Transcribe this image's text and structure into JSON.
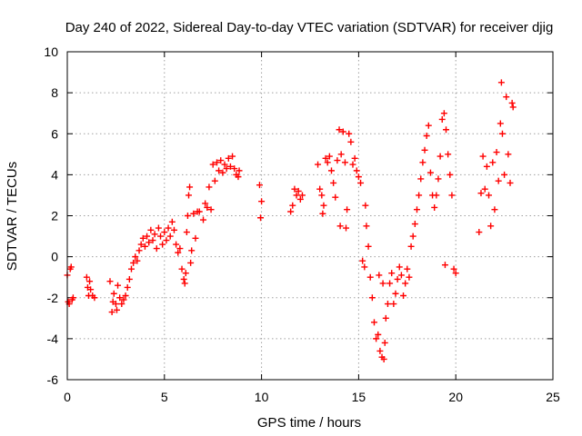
{
  "chart_data": {
    "type": "scatter",
    "title": "Day 240 of 2022, Sidereal Day-to-day VTEC variation (SDTVAR) for receiver djig",
    "xlabel": "GPS time / hours",
    "ylabel": "SDTVAR / TECUs",
    "xlim": [
      0,
      25
    ],
    "ylim": [
      -6,
      10
    ],
    "x_ticks": [
      0,
      5,
      10,
      15,
      20,
      25
    ],
    "y_ticks": [
      -6,
      -4,
      -2,
      0,
      2,
      4,
      6,
      8,
      10
    ],
    "x_tick_labels": [
      "0",
      "5",
      "10",
      "15",
      "20",
      "25"
    ],
    "y_tick_labels": [
      "-6",
      "-4",
      "-2",
      "0",
      "2",
      "4",
      "6",
      "8",
      "10"
    ],
    "grid": true,
    "marker": "+",
    "series": [
      {
        "color": "#ff0000",
        "points": [
          [
            0.0,
            -0.9
          ],
          [
            0.05,
            -2.2
          ],
          [
            0.1,
            -2.3
          ],
          [
            0.15,
            -0.6
          ],
          [
            0.2,
            -0.5
          ],
          [
            0.25,
            -2.1
          ],
          [
            0.3,
            -2.0
          ],
          [
            1.0,
            -1.0
          ],
          [
            1.05,
            -1.5
          ],
          [
            1.1,
            -1.9
          ],
          [
            1.15,
            -1.2
          ],
          [
            1.2,
            -1.6
          ],
          [
            1.3,
            -1.9
          ],
          [
            1.4,
            -2.0
          ],
          [
            2.2,
            -1.2
          ],
          [
            2.3,
            -2.7
          ],
          [
            2.35,
            -2.2
          ],
          [
            2.4,
            -1.8
          ],
          [
            2.5,
            -2.3
          ],
          [
            2.55,
            -2.6
          ],
          [
            2.6,
            -1.4
          ],
          [
            2.7,
            -2.0
          ],
          [
            2.8,
            -2.3
          ],
          [
            2.9,
            -2.1
          ],
          [
            3.0,
            -1.9
          ],
          [
            3.1,
            -1.5
          ],
          [
            3.2,
            -1.1
          ],
          [
            3.3,
            -0.6
          ],
          [
            3.4,
            -0.3
          ],
          [
            3.5,
            0.0
          ],
          [
            3.6,
            -0.2
          ],
          [
            3.7,
            0.3
          ],
          [
            3.8,
            0.6
          ],
          [
            3.9,
            0.9
          ],
          [
            4.0,
            0.5
          ],
          [
            4.1,
            1.0
          ],
          [
            4.2,
            0.7
          ],
          [
            4.3,
            1.3
          ],
          [
            4.4,
            0.8
          ],
          [
            4.5,
            1.1
          ],
          [
            4.6,
            0.4
          ],
          [
            4.7,
            1.4
          ],
          [
            4.8,
            1.0
          ],
          [
            4.9,
            0.6
          ],
          [
            5.0,
            1.2
          ],
          [
            5.1,
            0.8
          ],
          [
            5.2,
            1.4
          ],
          [
            5.3,
            1.0
          ],
          [
            5.4,
            1.7
          ],
          [
            5.5,
            1.3
          ],
          [
            5.6,
            0.6
          ],
          [
            5.7,
            0.2
          ],
          [
            5.8,
            0.4
          ],
          [
            5.9,
            -0.6
          ],
          [
            6.0,
            -1.1
          ],
          [
            6.05,
            -1.3
          ],
          [
            6.1,
            -0.8
          ],
          [
            6.15,
            1.2
          ],
          [
            6.2,
            2.0
          ],
          [
            6.25,
            3.0
          ],
          [
            6.3,
            3.4
          ],
          [
            6.35,
            -0.3
          ],
          [
            6.4,
            0.3
          ],
          [
            6.5,
            2.1
          ],
          [
            6.6,
            0.9
          ],
          [
            6.7,
            2.2
          ],
          [
            6.8,
            2.2
          ],
          [
            7.0,
            1.8
          ],
          [
            7.1,
            2.6
          ],
          [
            7.2,
            2.4
          ],
          [
            7.3,
            3.4
          ],
          [
            7.4,
            2.3
          ],
          [
            7.5,
            4.5
          ],
          [
            7.6,
            3.7
          ],
          [
            7.7,
            4.6
          ],
          [
            7.8,
            4.2
          ],
          [
            7.9,
            4.7
          ],
          [
            8.0,
            4.1
          ],
          [
            8.1,
            4.5
          ],
          [
            8.2,
            4.3
          ],
          [
            8.3,
            4.8
          ],
          [
            8.4,
            4.4
          ],
          [
            8.5,
            4.9
          ],
          [
            8.6,
            4.3
          ],
          [
            8.7,
            4.0
          ],
          [
            8.8,
            3.9
          ],
          [
            8.85,
            4.2
          ],
          [
            9.9,
            3.5
          ],
          [
            9.95,
            1.9
          ],
          [
            10.0,
            2.7
          ],
          [
            11.5,
            2.2
          ],
          [
            11.6,
            2.5
          ],
          [
            11.7,
            3.3
          ],
          [
            11.8,
            3.0
          ],
          [
            11.9,
            3.2
          ],
          [
            12.0,
            2.8
          ],
          [
            12.1,
            3.0
          ],
          [
            12.9,
            4.5
          ],
          [
            13.0,
            3.3
          ],
          [
            13.1,
            3.0
          ],
          [
            13.15,
            2.1
          ],
          [
            13.2,
            2.5
          ],
          [
            13.3,
            4.8
          ],
          [
            13.4,
            4.6
          ],
          [
            13.5,
            4.9
          ],
          [
            13.6,
            4.2
          ],
          [
            13.7,
            3.6
          ],
          [
            13.8,
            2.9
          ],
          [
            13.9,
            4.7
          ],
          [
            14.0,
            6.2
          ],
          [
            14.05,
            1.5
          ],
          [
            14.1,
            5.0
          ],
          [
            14.2,
            6.1
          ],
          [
            14.3,
            4.6
          ],
          [
            14.35,
            1.4
          ],
          [
            14.4,
            2.3
          ],
          [
            14.5,
            6.0
          ],
          [
            14.6,
            5.6
          ],
          [
            14.7,
            4.5
          ],
          [
            14.8,
            4.8
          ],
          [
            14.9,
            4.2
          ],
          [
            15.0,
            3.9
          ],
          [
            15.1,
            3.6
          ],
          [
            15.2,
            -0.2
          ],
          [
            15.3,
            -0.5
          ],
          [
            15.35,
            2.5
          ],
          [
            15.4,
            1.5
          ],
          [
            15.5,
            0.5
          ],
          [
            15.6,
            -1.0
          ],
          [
            15.7,
            -2.0
          ],
          [
            15.8,
            -3.2
          ],
          [
            15.9,
            -4.0
          ],
          [
            16.0,
            -3.8
          ],
          [
            16.05,
            -0.9
          ],
          [
            16.1,
            -4.6
          ],
          [
            16.2,
            -4.9
          ],
          [
            16.25,
            -1.3
          ],
          [
            16.3,
            -5.0
          ],
          [
            16.35,
            -4.2
          ],
          [
            16.4,
            -3.0
          ],
          [
            16.5,
            -2.3
          ],
          [
            16.6,
            -1.3
          ],
          [
            16.7,
            -0.8
          ],
          [
            16.8,
            -2.3
          ],
          [
            16.9,
            -1.8
          ],
          [
            17.0,
            -1.1
          ],
          [
            17.1,
            -0.5
          ],
          [
            17.2,
            -0.9
          ],
          [
            17.3,
            -1.9
          ],
          [
            17.4,
            -1.3
          ],
          [
            17.5,
            -0.6
          ],
          [
            17.6,
            -1.0
          ],
          [
            17.7,
            0.5
          ],
          [
            17.8,
            1.0
          ],
          [
            17.9,
            1.6
          ],
          [
            18.0,
            2.3
          ],
          [
            18.1,
            3.0
          ],
          [
            18.2,
            3.8
          ],
          [
            18.3,
            4.6
          ],
          [
            18.4,
            5.2
          ],
          [
            18.5,
            5.9
          ],
          [
            18.6,
            6.4
          ],
          [
            18.7,
            4.1
          ],
          [
            18.8,
            3.0
          ],
          [
            18.9,
            2.4
          ],
          [
            19.0,
            3.0
          ],
          [
            19.1,
            3.8
          ],
          [
            19.2,
            4.9
          ],
          [
            19.3,
            6.7
          ],
          [
            19.4,
            7.0
          ],
          [
            19.45,
            -0.4
          ],
          [
            19.5,
            6.2
          ],
          [
            19.6,
            5.0
          ],
          [
            19.7,
            4.0
          ],
          [
            19.8,
            3.0
          ],
          [
            19.9,
            -0.6
          ],
          [
            20.0,
            -0.8
          ],
          [
            21.2,
            1.2
          ],
          [
            21.3,
            3.1
          ],
          [
            21.4,
            4.9
          ],
          [
            21.5,
            3.3
          ],
          [
            21.6,
            4.4
          ],
          [
            21.7,
            3.0
          ],
          [
            21.8,
            1.5
          ],
          [
            21.9,
            4.6
          ],
          [
            22.0,
            2.3
          ],
          [
            22.1,
            5.1
          ],
          [
            22.2,
            3.7
          ],
          [
            22.3,
            6.5
          ],
          [
            22.35,
            8.5
          ],
          [
            22.4,
            6.0
          ],
          [
            22.5,
            4.0
          ],
          [
            22.6,
            7.8
          ],
          [
            22.7,
            5.0
          ],
          [
            22.8,
            3.6
          ],
          [
            22.9,
            7.5
          ],
          [
            22.95,
            7.3
          ]
        ]
      }
    ]
  }
}
